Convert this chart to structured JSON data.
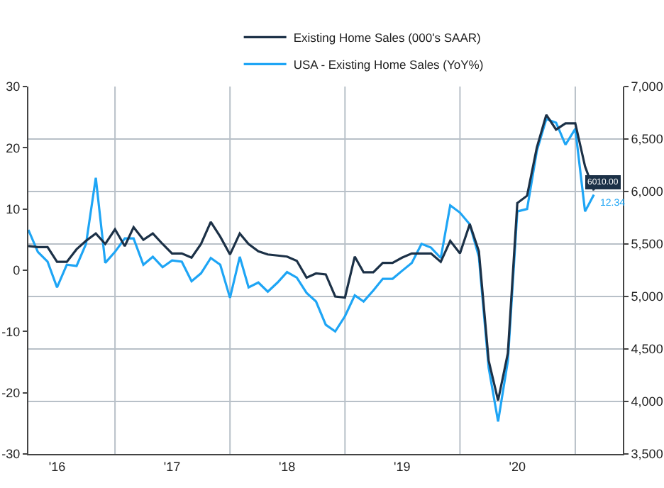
{
  "chart_data": {
    "type": "line",
    "x": [
      "2016-04",
      "2016-05",
      "2016-06",
      "2016-07",
      "2016-08",
      "2016-09",
      "2016-10",
      "2016-11",
      "2016-12",
      "2017-01",
      "2017-02",
      "2017-03",
      "2017-04",
      "2017-05",
      "2017-06",
      "2017-07",
      "2017-08",
      "2017-09",
      "2017-10",
      "2017-11",
      "2017-12",
      "2018-01",
      "2018-02",
      "2018-03",
      "2018-04",
      "2018-05",
      "2018-06",
      "2018-07",
      "2018-08",
      "2018-09",
      "2018-10",
      "2018-11",
      "2018-12",
      "2019-01",
      "2019-02",
      "2019-03",
      "2019-04",
      "2019-05",
      "2019-06",
      "2019-07",
      "2019-08",
      "2019-09",
      "2019-10",
      "2019-11",
      "2019-12",
      "2020-01",
      "2020-02",
      "2020-03",
      "2020-04",
      "2020-05",
      "2020-06",
      "2020-07",
      "2020-08",
      "2020-09",
      "2020-10",
      "2020-11",
      "2020-12",
      "2021-01",
      "2021-02",
      "2021-03"
    ],
    "series": [
      {
        "name": "Existing Home Sales (000's SAAR)",
        "color": "#1c3147",
        "axis": "y2",
        "values": [
          5480,
          5470,
          5470,
          5330,
          5330,
          5450,
          5530,
          5600,
          5500,
          5640,
          5480,
          5660,
          5540,
          5600,
          5500,
          5410,
          5410,
          5370,
          5500,
          5710,
          5570,
          5400,
          5600,
          5500,
          5430,
          5400,
          5390,
          5380,
          5340,
          5180,
          5220,
          5210,
          5000,
          4990,
          5380,
          5230,
          5230,
          5320,
          5320,
          5370,
          5410,
          5410,
          5410,
          5330,
          5530,
          5410,
          5690,
          5430,
          4390,
          4010,
          4460,
          5890,
          5960,
          6420,
          6730,
          6590,
          6650,
          6650,
          6240,
          6010
        ],
        "value_labels": [
          null,
          null,
          null,
          null,
          null,
          null,
          null,
          null,
          null,
          null,
          null,
          null,
          null,
          null,
          null,
          null,
          null,
          null,
          null,
          null,
          null,
          null,
          null,
          null,
          null,
          null,
          null,
          null,
          null,
          null,
          null,
          null,
          null,
          null,
          null,
          null,
          null,
          null,
          null,
          null,
          null,
          null,
          null,
          null,
          null,
          null,
          null,
          null,
          null,
          null,
          null,
          null,
          null,
          null,
          null,
          null,
          null,
          null,
          null,
          "6010.00"
        ]
      },
      {
        "name": "USA - Existing Home Sales (YoY%)",
        "color": "#1ea5f5",
        "values": [
          6.6,
          3.0,
          1.4,
          -2.8,
          0.9,
          0.7,
          4.3,
          15.1,
          1.2,
          3.0,
          5.2,
          5.2,
          0.9,
          2.2,
          0.5,
          1.6,
          1.4,
          -1.8,
          -0.5,
          2.0,
          0.9,
          -4.5,
          2.2,
          -2.8,
          -2.0,
          -3.5,
          -2.0,
          -0.3,
          -1.2,
          -3.7,
          -5.1,
          -8.9,
          -10.0,
          -7.5,
          -4.1,
          -5.1,
          -3.3,
          -1.4,
          -1.4,
          -0.1,
          1.2,
          4.3,
          3.7,
          2.0,
          10.6,
          9.4,
          7.5,
          2.2,
          -15.9,
          -24.7,
          -14.8,
          9.6,
          10.0,
          19.5,
          24.7,
          24.1,
          20.5,
          23.1,
          9.6,
          12.34
        ],
        "value_labels": [
          null,
          null,
          null,
          null,
          null,
          null,
          null,
          null,
          null,
          null,
          null,
          null,
          null,
          null,
          null,
          null,
          null,
          null,
          null,
          null,
          null,
          null,
          null,
          null,
          null,
          null,
          null,
          null,
          null,
          null,
          null,
          null,
          null,
          null,
          null,
          null,
          null,
          null,
          null,
          null,
          null,
          null,
          null,
          null,
          null,
          null,
          null,
          null,
          null,
          null,
          null,
          null,
          null,
          null,
          null,
          null,
          null,
          null,
          null,
          "12.34"
        ]
      }
    ],
    "xlim": [
      "2016-04-01",
      "2021-06-01"
    ],
    "xticks": [
      {
        "value": "2016-07-01",
        "label": "'16"
      },
      {
        "value": "2017-01-01",
        "label": null
      },
      {
        "value": "2017-07-01",
        "label": "'17"
      },
      {
        "value": "2018-01-01",
        "label": null
      },
      {
        "value": "2018-07-01",
        "label": "'18"
      },
      {
        "value": "2019-01-01",
        "label": null
      },
      {
        "value": "2019-07-01",
        "label": "'19"
      },
      {
        "value": "2020-01-01",
        "label": null
      },
      {
        "value": "2020-07-01",
        "label": "'20"
      },
      {
        "value": "2021-01-01",
        "label": null
      }
    ],
    "ylim": [
      -30,
      30
    ],
    "yticks": [
      -30,
      -20,
      -10,
      0,
      10,
      20,
      30
    ],
    "y2lim": [
      3500,
      7000
    ],
    "y2ticks": [
      {
        "value": 3500,
        "label": "3,500"
      },
      {
        "value": 4000,
        "label": "4,000"
      },
      {
        "value": 4500,
        "label": "4,500"
      },
      {
        "value": 5000,
        "label": "5,000"
      },
      {
        "value": 5500,
        "label": "5,500"
      },
      {
        "value": 6000,
        "label": "6,000"
      },
      {
        "value": 6500,
        "label": "6,500"
      },
      {
        "value": 7000,
        "label": "7,000"
      }
    ],
    "grid": true,
    "legend": "top right",
    "marker": "none",
    "line_style": "solid"
  }
}
